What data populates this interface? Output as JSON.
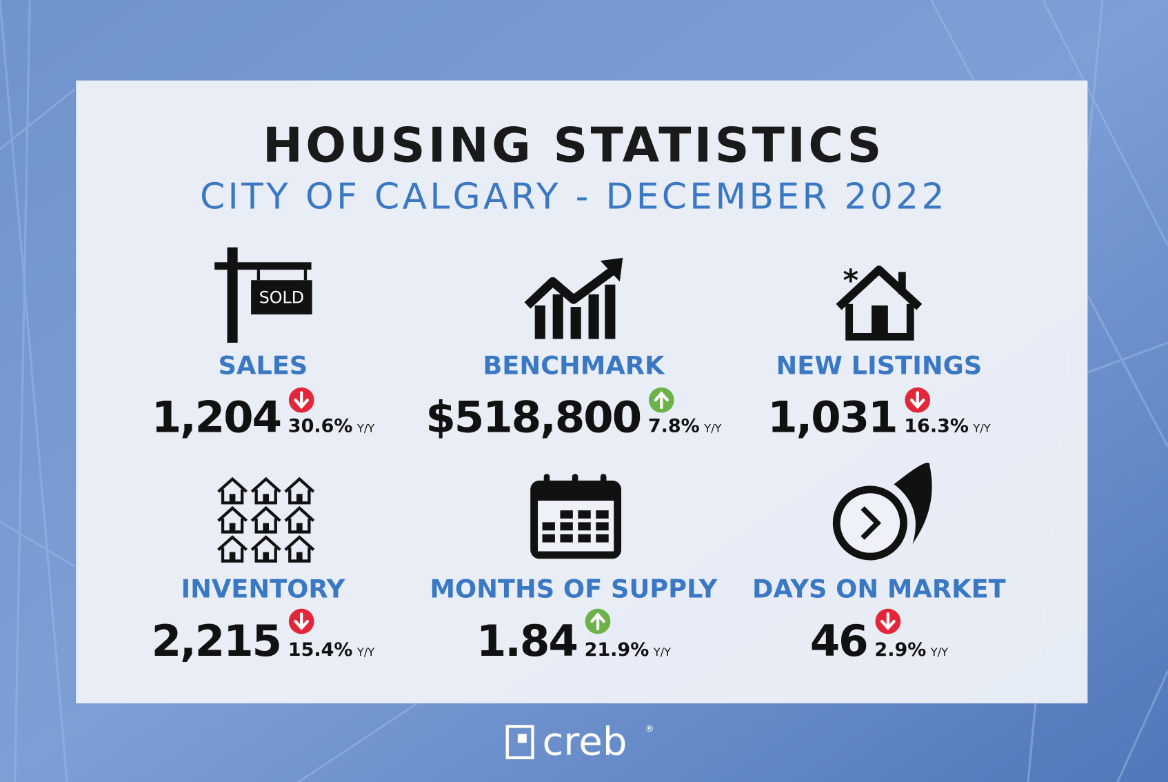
{
  "header": {
    "title": "HOUSING STATISTICS",
    "subtitle": "CITY OF CALGARY - DECEMBER 2022"
  },
  "sold_sign": "SOLD",
  "stats": [
    {
      "label": "SALES",
      "value": "1,204",
      "change": "30.6%",
      "unit": "Y/Y",
      "direction": "down"
    },
    {
      "label": "BENCHMARK",
      "value": "$518,800",
      "change": "7.8%",
      "unit": "Y/Y",
      "direction": "up"
    },
    {
      "label": "NEW LISTINGS",
      "value": "1,031",
      "change": "16.3%",
      "unit": "Y/Y",
      "direction": "down"
    },
    {
      "label": "INVENTORY",
      "value": "2,215",
      "change": "15.4%",
      "unit": "Y/Y",
      "direction": "down"
    },
    {
      "label": "MONTHS OF SUPPLY",
      "value": "1.84",
      "change": "21.9%",
      "unit": "Y/Y",
      "direction": "up"
    },
    {
      "label": "DAYS ON MARKET",
      "value": "46",
      "change": "2.9%",
      "unit": "Y/Y",
      "direction": "down"
    }
  ],
  "logo": {
    "text": "creb",
    "mark": "®"
  }
}
